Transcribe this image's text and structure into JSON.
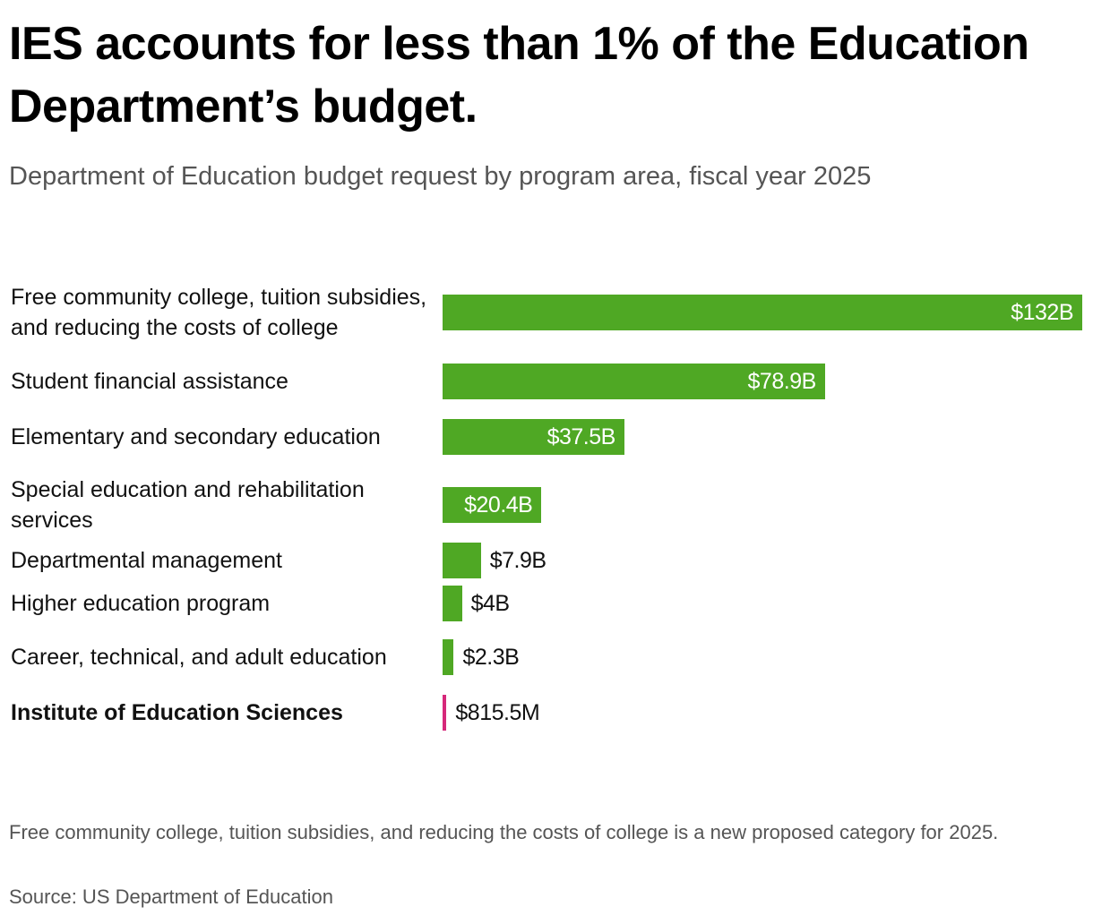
{
  "title": "IES accounts for less than 1% of the Education Department’s budget.",
  "subtitle": "Department of Education budget request by program area, fiscal year 2025",
  "footnote": "Free community college, tuition subsidies, and reducing the costs of college is a new proposed category for 2025.",
  "source": "Source: US Department of Education",
  "colors": {
    "bar": "#4fa824",
    "highlight": "#d6287a"
  },
  "chart_data": {
    "type": "bar",
    "orientation": "horizontal",
    "categories": [
      "Free community college, tuition subsidies, and reducing the costs of college",
      "Student financial assistance",
      "Elementary and secondary education",
      "Special education and rehabilitation services",
      "Departmental management",
      "Higher education program",
      "Career, technical, and adult education",
      "Institute of Education Sciences"
    ],
    "values": [
      132,
      78.9,
      37.5,
      20.4,
      7.9,
      4,
      2.3,
      0.8155
    ],
    "value_labels": [
      "$132B",
      "$78.9B",
      "$37.5B",
      "$20.4B",
      "$7.9B",
      "$4B",
      "$2.3B",
      "$815.5M"
    ],
    "unit": "billions of dollars",
    "highlighted": "Institute of Education Sciences",
    "title": "IES accounts for less than 1% of the Education Department’s budget.",
    "subtitle": "Department of Education budget request by program area, fiscal year 2025",
    "xlabel": "",
    "ylabel": "",
    "xlim": [
      0,
      132
    ],
    "grid": false,
    "legend": "none"
  }
}
